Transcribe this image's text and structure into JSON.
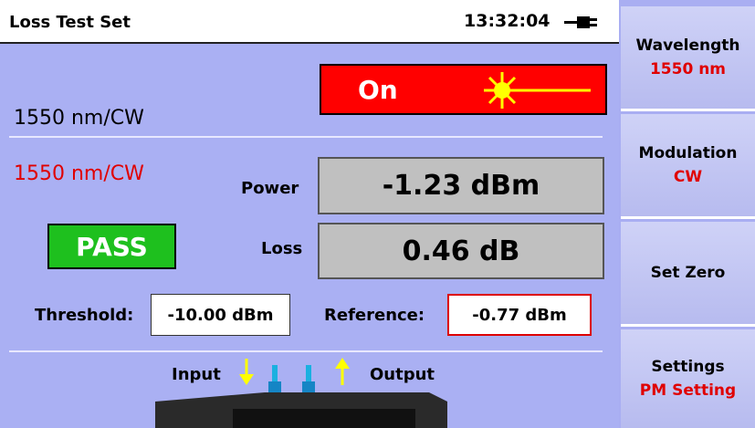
{
  "header": {
    "title": "Loss Test Set",
    "time": "13:32:04"
  },
  "source": {
    "wavelength": "1550 nm/CW",
    "state": "On"
  },
  "meter": {
    "wavelength": "1550 nm/CW",
    "status": "PASS",
    "power_label": "Power",
    "power": "-1.23 dBm",
    "loss_label": "Loss",
    "loss": "0.46 dB",
    "threshold_label": "Threshold:",
    "threshold": "-10.00 dBm",
    "reference_label": "Reference:",
    "reference": "-0.77 dBm"
  },
  "connector": {
    "input": "Input",
    "output": "Output"
  },
  "menu": [
    {
      "label": "Wavelength",
      "value": "1550 nm"
    },
    {
      "label": "Modulation",
      "value": "CW"
    },
    {
      "label": "Set Zero"
    },
    {
      "label": "Settings",
      "value": "PM Setting"
    }
  ]
}
